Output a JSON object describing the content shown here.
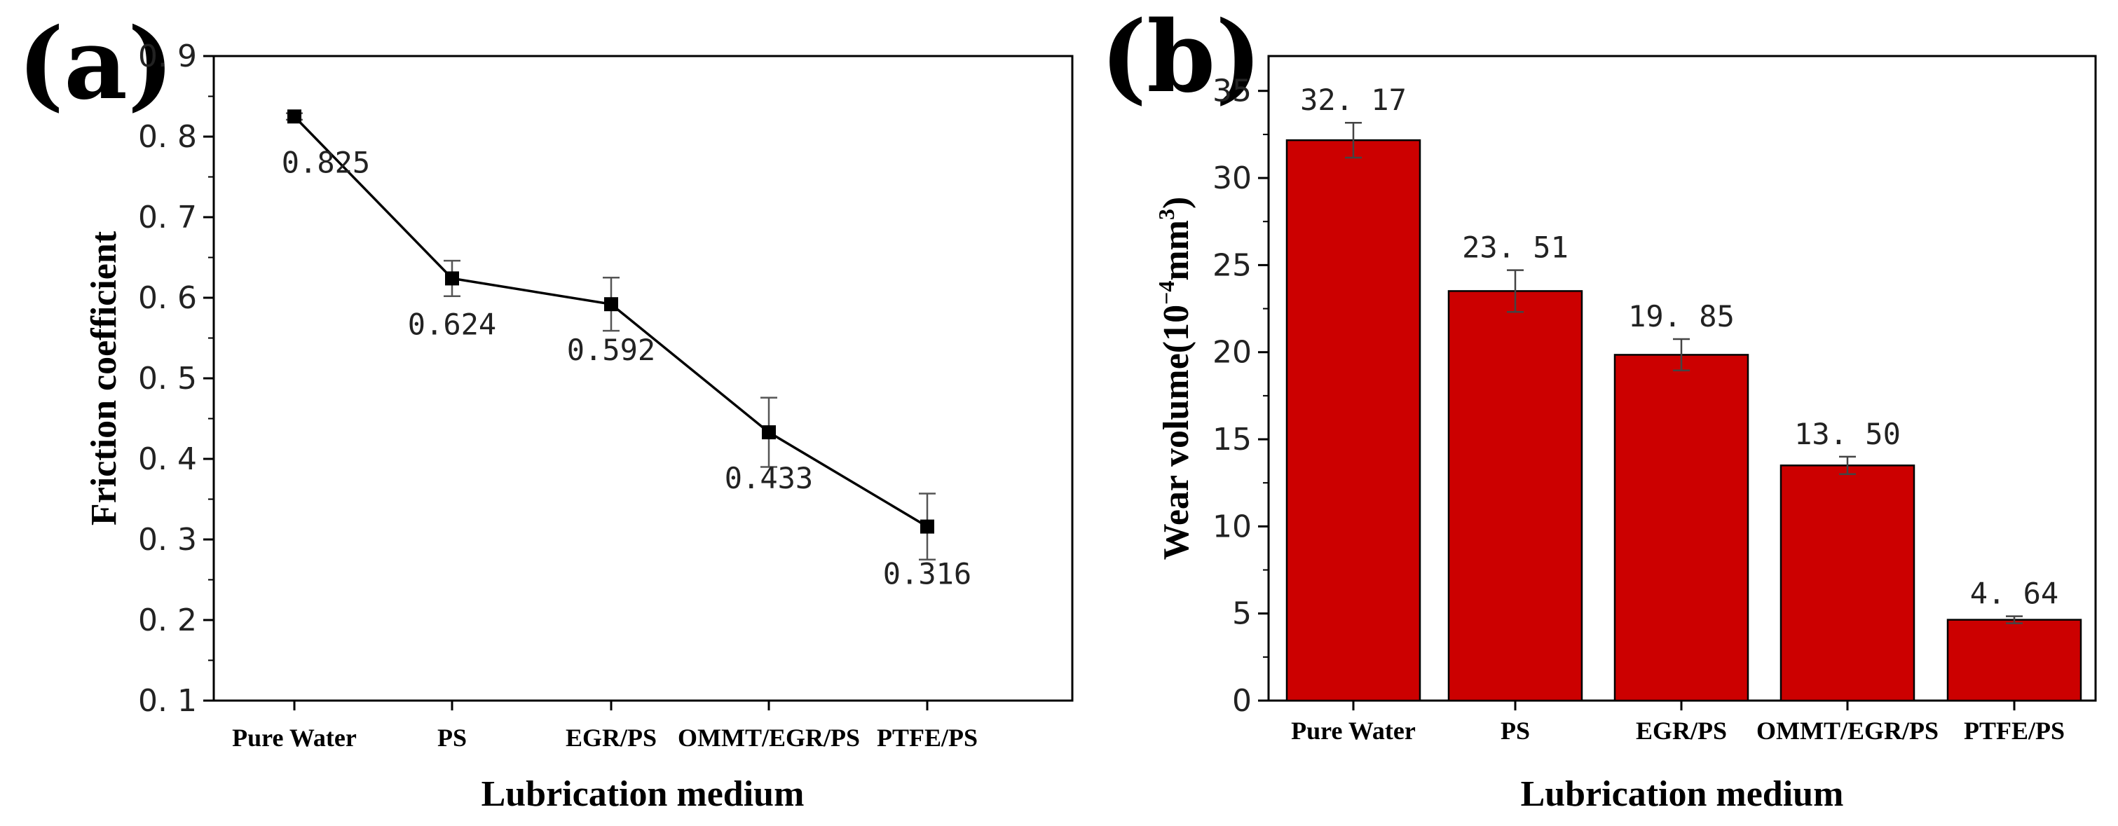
{
  "panels": {
    "a_label": "(a)",
    "b_label": "(b)"
  },
  "chart_data": [
    {
      "id": "a",
      "type": "line",
      "categories": [
        "Pure Water",
        "PS",
        "EGR/PS",
        "OMMT/EGR/PS",
        "PTFE/PS"
      ],
      "values": [
        0.825,
        0.624,
        0.592,
        0.433,
        0.316
      ],
      "value_labels": [
        "0.825",
        "0.624",
        "0.592",
        "0.433",
        "0.316"
      ],
      "errors": [
        0.004,
        0.022,
        0.033,
        0.043,
        0.041
      ],
      "xlabel": "Lubrication medium",
      "ylabel": "Friction coefficient",
      "ylim": [
        0.1,
        0.9
      ],
      "yticks": [
        0.1,
        0.2,
        0.3,
        0.4,
        0.5,
        0.6,
        0.7,
        0.8,
        0.9
      ],
      "ytick_labels": [
        "0. 1",
        "0. 2",
        "0. 3",
        "0. 4",
        "0. 5",
        "0. 6",
        "0. 7",
        "0. 8",
        "0. 9"
      ],
      "marker": "square",
      "color": "#000000"
    },
    {
      "id": "b",
      "type": "bar",
      "categories": [
        "Pure Water",
        "PS",
        "EGR/PS",
        "OMMT/EGR/PS",
        "PTFE/PS"
      ],
      "values": [
        32.17,
        23.51,
        19.85,
        13.5,
        4.64
      ],
      "value_labels": [
        "32. 17",
        "23. 51",
        "19. 85",
        "13. 50",
        "4. 64"
      ],
      "errors": [
        1.0,
        1.2,
        0.9,
        0.5,
        0.2
      ],
      "xlabel": "Lubrication medium",
      "ylabel_main": "Wear volume(10",
      "ylabel_sup": "−4",
      "ylabel_unit": "mm",
      "ylabel_unit_sup": "3",
      "ylabel_end": ")",
      "ylim": [
        0,
        37
      ],
      "yticks": [
        0,
        5,
        10,
        15,
        20,
        25,
        30,
        35
      ],
      "ytick_labels": [
        "0",
        "5",
        "10",
        "15",
        "20",
        "25",
        "30",
        "35"
      ],
      "bar_color": "#cc0000"
    }
  ]
}
